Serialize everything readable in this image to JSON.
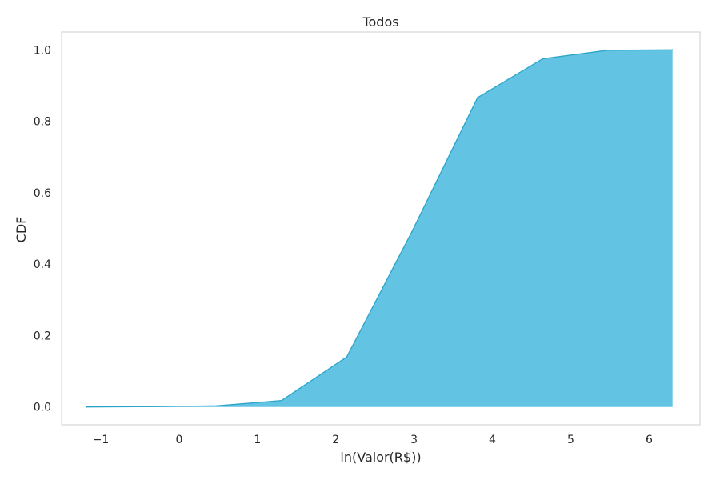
{
  "chart_data": {
    "type": "area",
    "title": "Todos",
    "xlabel": "ln(Valor(R$))",
    "ylabel": "CDF",
    "xlim": [
      -1.5,
      6.65
    ],
    "ylim": [
      -0.05,
      1.05
    ],
    "x_ticks": [
      -1,
      0,
      1,
      2,
      3,
      4,
      5,
      6
    ],
    "x_tick_labels": [
      "−1",
      "0",
      "1",
      "2",
      "3",
      "4",
      "5",
      "6"
    ],
    "y_ticks": [
      0.0,
      0.2,
      0.4,
      0.6,
      0.8,
      1.0
    ],
    "y_tick_labels": [
      "0.0",
      "0.2",
      "0.4",
      "0.6",
      "0.8",
      "1.0"
    ],
    "grid": false,
    "series": [
      {
        "x": [
          -1.18,
          -0.34,
          0.48,
          1.31,
          2.14,
          2.97,
          3.81,
          4.64,
          5.47,
          6.3
        ],
        "y": [
          0.0,
          0.001,
          0.003,
          0.018,
          0.14,
          0.49,
          0.866,
          0.975,
          0.999,
          1.0
        ],
        "fill_color": "#62c4e2",
        "line_color": "#2ba3c9"
      }
    ]
  }
}
